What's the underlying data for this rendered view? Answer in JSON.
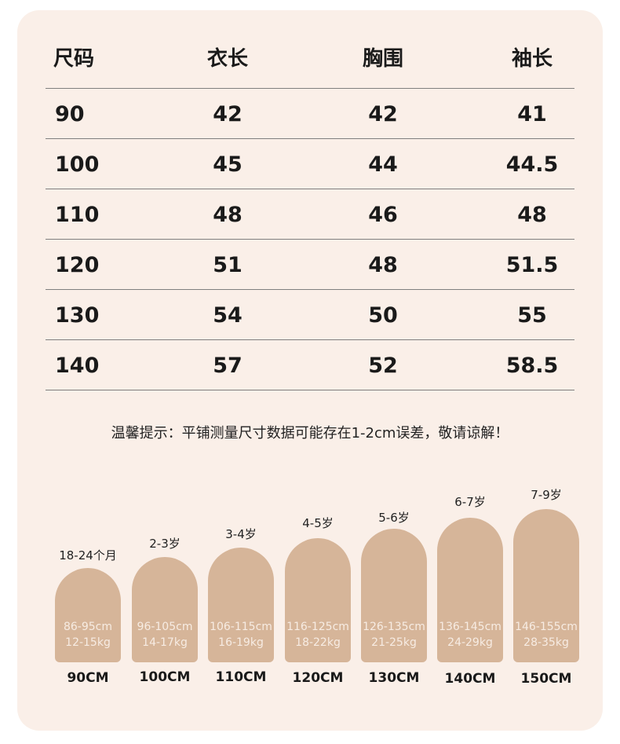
{
  "table": {
    "headers": [
      "尺码",
      "衣长",
      "胸围",
      "袖长"
    ],
    "rows": [
      [
        "90",
        "42",
        "42",
        "41"
      ],
      [
        "100",
        "45",
        "44",
        "44.5"
      ],
      [
        "110",
        "48",
        "46",
        "48"
      ],
      [
        "120",
        "51",
        "48",
        "51.5"
      ],
      [
        "130",
        "54",
        "50",
        "55"
      ],
      [
        "140",
        "57",
        "52",
        "58.5"
      ]
    ]
  },
  "tip": "温馨提示：平铺测量尺寸数据可能存在1-2cm误差，敬请谅解！",
  "kids": [
    {
      "age": "18-24个月",
      "height": "86-95cm",
      "weight": "12-15kg",
      "size": "90CM"
    },
    {
      "age": "2-3岁",
      "height": "96-105cm",
      "weight": "14-17kg",
      "size": "100CM"
    },
    {
      "age": "3-4岁",
      "height": "106-115cm",
      "weight": "16-19kg",
      "size": "110CM"
    },
    {
      "age": "4-5岁",
      "height": "116-125cm",
      "weight": "18-22kg",
      "size": "120CM"
    },
    {
      "age": "5-6岁",
      "height": "126-135cm",
      "weight": "21-25kg",
      "size": "130CM"
    },
    {
      "age": "6-7岁",
      "height": "136-145cm",
      "weight": "24-29kg",
      "size": "140CM"
    },
    {
      "age": "7-9岁",
      "height": "146-155cm",
      "weight": "28-35kg",
      "size": "150CM"
    }
  ],
  "colors": {
    "card_bg": "#faefe8",
    "figure": "#d6b599"
  }
}
